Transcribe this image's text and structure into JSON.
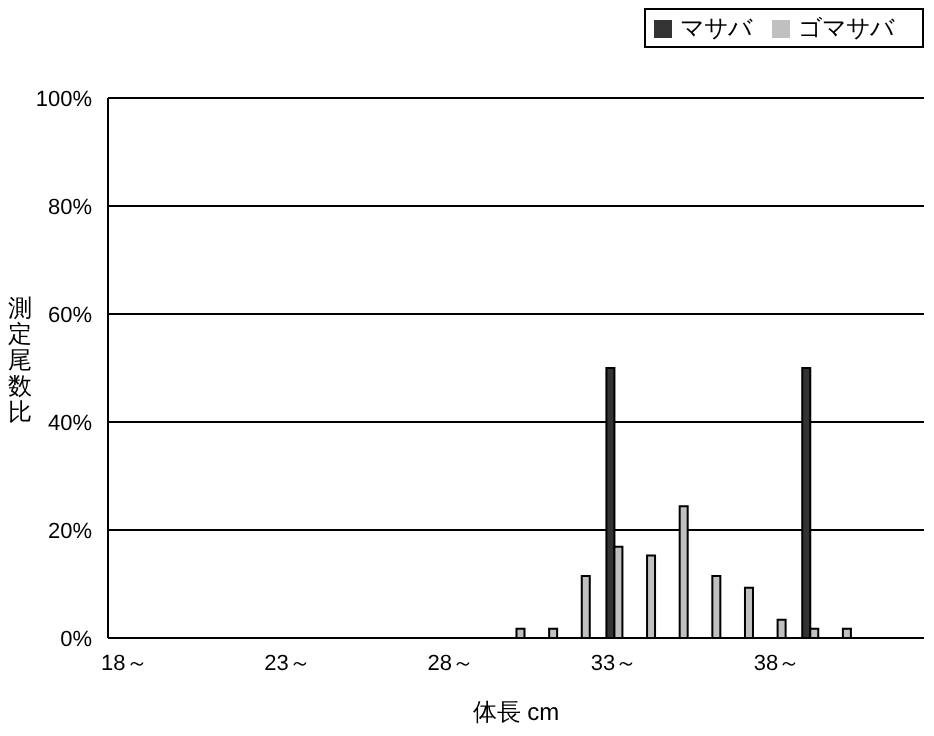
{
  "chart_data": {
    "type": "bar",
    "xlabel": "体長 cm",
    "ylabel": "測定尾数比",
    "categories": [
      "18～",
      null,
      null,
      null,
      null,
      "23～",
      null,
      null,
      null,
      null,
      "28～",
      null,
      null,
      null,
      null,
      "33～",
      null,
      null,
      null,
      null,
      "38～",
      null,
      null,
      null,
      null
    ],
    "series": [
      {
        "name": "マサバ",
        "color": "#333333",
        "values": [
          0,
          0,
          0,
          0,
          0,
          0,
          0,
          0,
          0,
          0,
          0,
          0,
          0,
          0,
          0,
          50,
          0,
          0,
          0,
          0,
          0,
          50,
          0,
          0,
          0
        ]
      },
      {
        "name": "ゴマサバ",
        "color": "#c0c0c0",
        "values": [
          0,
          0,
          0,
          0,
          0,
          0,
          0,
          0,
          0,
          0,
          0,
          0,
          1.7,
          1.7,
          11.5,
          16.9,
          15.3,
          24.4,
          11.5,
          9.3,
          3.4,
          1.7,
          1.7,
          0,
          0
        ]
      }
    ],
    "ylim": [
      0,
      100
    ],
    "yticks": [
      {
        "value": 0,
        "label": "0%"
      },
      {
        "value": 20,
        "label": "20%"
      },
      {
        "value": 40,
        "label": "40%"
      },
      {
        "value": 60,
        "label": "60%"
      },
      {
        "value": 80,
        "label": "80%"
      },
      {
        "value": 100,
        "label": "100%"
      }
    ],
    "grid": "y",
    "legend": "top right"
  }
}
